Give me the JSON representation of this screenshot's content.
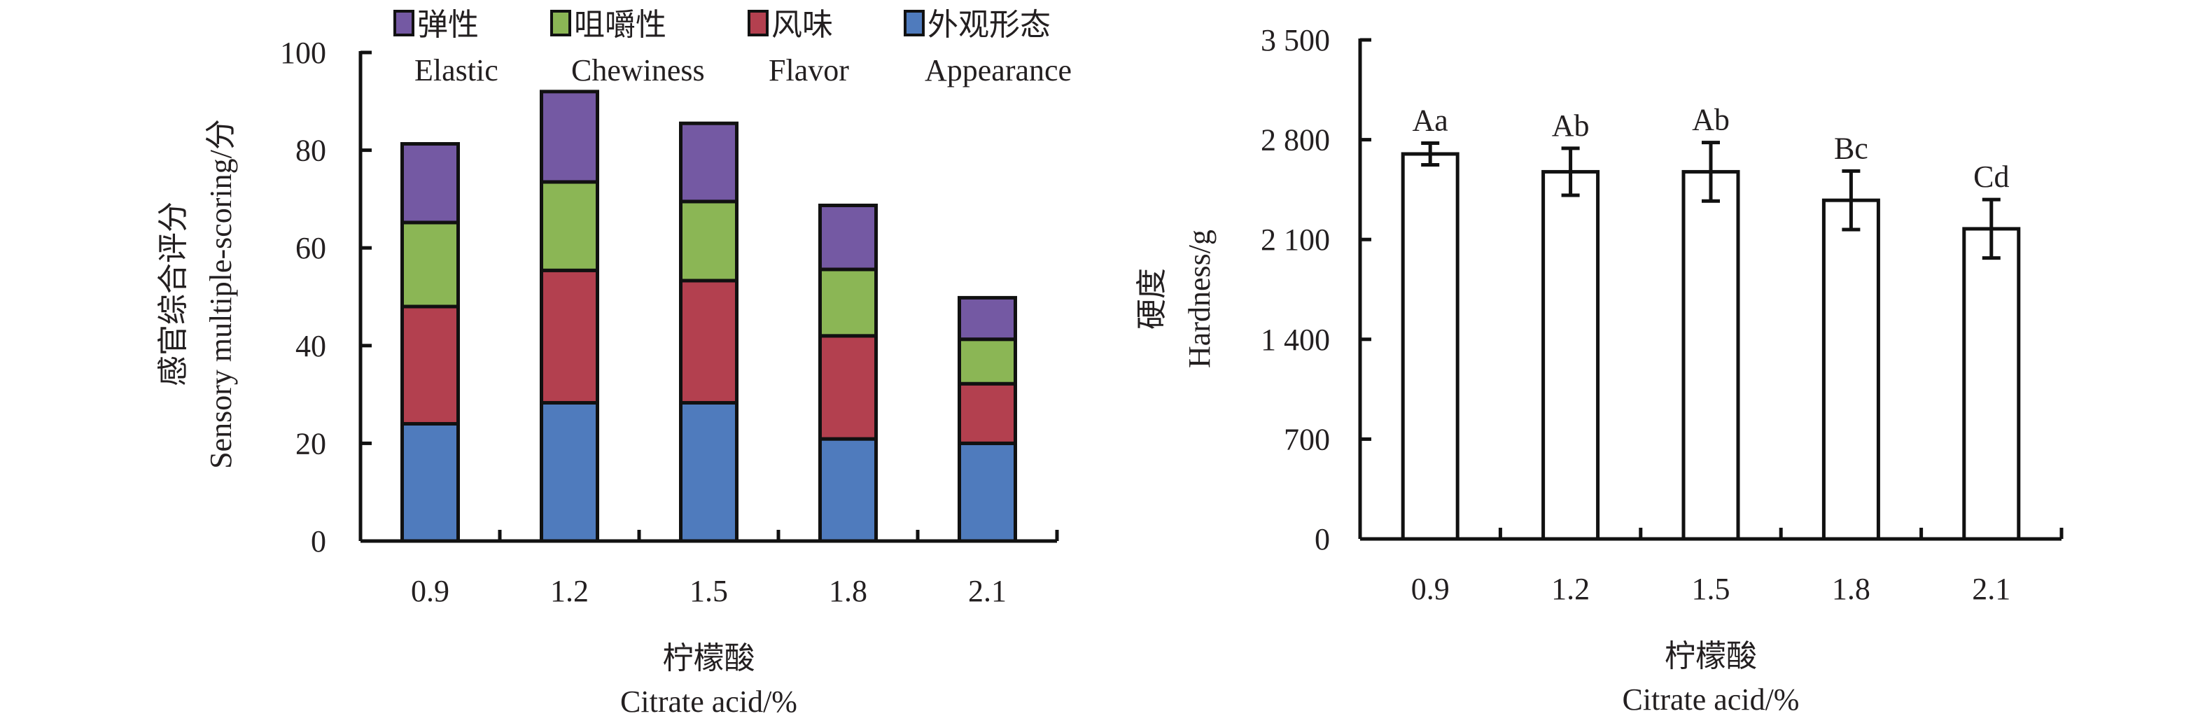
{
  "chart_data": [
    {
      "type": "bar",
      "stacked": true,
      "categories": [
        "0.9",
        "1.2",
        "1.5",
        "1.8",
        "2.1"
      ],
      "series": [
        {
          "name": "外观形态",
          "name_en": "Appearance",
          "color": "#4f7bbd",
          "values": [
            24.0,
            28.3,
            28.3,
            20.9,
            20.0
          ]
        },
        {
          "name": "风味",
          "name_en": "Flavor",
          "color": "#b3404f",
          "values": [
            24.0,
            27.1,
            25.0,
            21.1,
            12.2
          ]
        },
        {
          "name": "咀嚼性",
          "name_en": "Chewiness",
          "color": "#8bb655",
          "values": [
            17.2,
            18.1,
            16.2,
            13.6,
            9.1
          ]
        },
        {
          "name": "弹性",
          "name_en": "Elastic",
          "color": "#7459a3",
          "values": [
            16.1,
            18.5,
            16.0,
            13.1,
            8.5
          ]
        }
      ],
      "legend_order": [
        3,
        2,
        1,
        0
      ],
      "ylabel_cn": "感官综合评分",
      "ylabel_en": "Sensory multiple-scoring/分",
      "xlabel_cn": "柠檬酸",
      "xlabel_en": "Citrate acid/%",
      "ylim": [
        0,
        100
      ],
      "yticks": [
        "0",
        "20",
        "40",
        "60",
        "80",
        "100"
      ],
      "legend_position": "top"
    },
    {
      "type": "bar",
      "categories": [
        "0.9",
        "1.2",
        "1.5",
        "1.8",
        "2.1"
      ],
      "values": [
        2700,
        2575,
        2575,
        2375,
        2175
      ],
      "errors": [
        76,
        165,
        205,
        205,
        205
      ],
      "annotations": [
        "Aa",
        "Ab",
        "Ab",
        "Bc",
        "Cd"
      ],
      "ylabel_cn": "硬度",
      "ylabel_en": "Hardness/g",
      "xlabel_cn": "柠檬酸",
      "xlabel_en": "Citrate acid/%",
      "ylim": [
        0,
        3500
      ],
      "yticks": [
        "0",
        "700",
        "1 400",
        "2 100",
        "2 800",
        "3 500"
      ],
      "bar_color": "#ffffff"
    }
  ]
}
